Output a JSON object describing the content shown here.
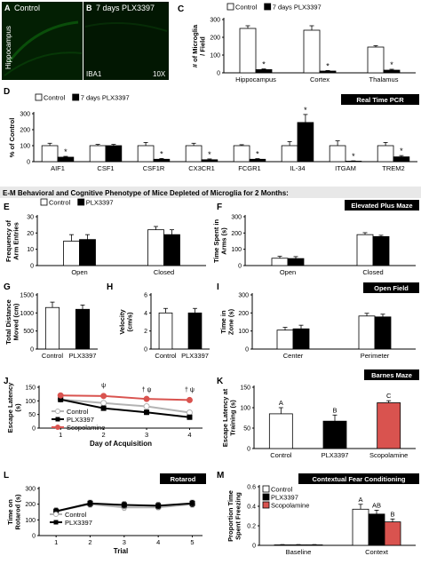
{
  "micrographs": {
    "a": {
      "panel": "A",
      "label": "Control",
      "side": "Hippocampus"
    },
    "b": {
      "panel": "B",
      "label": "7 days PLX3397",
      "stain": "IBA1",
      "mag": "10X"
    }
  },
  "section_header": "E-M Behavioral and Cognitive Phenotype of Mice Depleted of Microglia for 2 Months:",
  "chart_data": [
    {
      "id": "C",
      "type": "bar",
      "panel": "C",
      "title": "",
      "ylabel": "# of Microglia / Field",
      "ylim": [
        0,
        300
      ],
      "yticks": [
        0,
        100,
        200,
        300
      ],
      "categories": [
        "Hippocampus",
        "Cortex",
        "Thalamus"
      ],
      "series": [
        {
          "name": "Control",
          "values": [
            250,
            240,
            145
          ],
          "err": [
            15,
            25,
            8
          ],
          "color": "#ffffff"
        },
        {
          "name": "7 days PLX3397",
          "values": [
            18,
            10,
            15
          ],
          "err": [
            4,
            3,
            5
          ],
          "color": "#000000"
        }
      ],
      "sig_marks": [
        {
          "series": 1,
          "index": 0,
          "text": "*"
        },
        {
          "series": 1,
          "index": 1,
          "text": "*"
        },
        {
          "series": 1,
          "index": 2,
          "text": "*"
        }
      ]
    },
    {
      "id": "D",
      "type": "bar",
      "panel": "D",
      "title": "Real Time PCR",
      "ylabel": "% of Control",
      "ylim": [
        0,
        300
      ],
      "yticks": [
        0,
        100,
        200,
        300
      ],
      "categories": [
        "AIF1",
        "CSF1",
        "CSF1R",
        "CX3CR1",
        "FCGR1",
        "IL-34",
        "ITGAM",
        "TREM2"
      ],
      "series": [
        {
          "name": "Control",
          "values": [
            100,
            100,
            100,
            100,
            100,
            100,
            100,
            100
          ],
          "err": [
            15,
            8,
            20,
            15,
            6,
            25,
            30,
            20
          ],
          "color": "#ffffff"
        },
        {
          "name": "7 days PLX3397",
          "values": [
            28,
            100,
            15,
            12,
            15,
            245,
            3,
            30
          ],
          "err": [
            5,
            8,
            5,
            5,
            4,
            50,
            2,
            8
          ],
          "color": "#000000"
        }
      ],
      "sig_marks": [
        {
          "series": 1,
          "index": 0,
          "text": "*"
        },
        {
          "series": 1,
          "index": 2,
          "text": "*"
        },
        {
          "series": 1,
          "index": 3,
          "text": "*"
        },
        {
          "series": 1,
          "index": 4,
          "text": "*"
        },
        {
          "series": 1,
          "index": 5,
          "text": "*"
        },
        {
          "series": 1,
          "index": 6,
          "text": "*"
        },
        {
          "series": 1,
          "index": 7,
          "text": "*"
        }
      ]
    },
    {
      "id": "E",
      "type": "bar",
      "panel": "E",
      "title": "",
      "ylabel": "Frequency of Arm Entries",
      "ylim": [
        0,
        30
      ],
      "yticks": [
        0,
        10,
        20,
        30
      ],
      "categories": [
        "Open",
        "Closed"
      ],
      "series": [
        {
          "name": "Control",
          "values": [
            15,
            22
          ],
          "err": [
            4,
            2
          ],
          "color": "#ffffff"
        },
        {
          "name": "PLX3397",
          "values": [
            16,
            19
          ],
          "err": [
            3,
            3
          ],
          "color": "#000000"
        }
      ],
      "sig_marks": []
    },
    {
      "id": "F",
      "type": "bar",
      "panel": "F",
      "title": "Elevated Plus Maze",
      "ylabel": "Time Spent in Arms (s)",
      "ylim": [
        0,
        300
      ],
      "yticks": [
        0,
        100,
        200,
        300
      ],
      "categories": [
        "Open",
        "Closed"
      ],
      "series": [
        {
          "name": "Control",
          "values": [
            45,
            190
          ],
          "err": [
            12,
            12
          ],
          "color": "#ffffff"
        },
        {
          "name": "PLX3397",
          "values": [
            43,
            178
          ],
          "err": [
            12,
            8
          ],
          "color": "#000000"
        }
      ],
      "sig_marks": []
    },
    {
      "id": "G",
      "type": "bar",
      "panel": "G",
      "title": "",
      "ylabel": "Total Distance Moved (cm)",
      "ylim": [
        0,
        1500
      ],
      "yticks": [
        0,
        500,
        1000,
        1500
      ],
      "categories": [
        "Control",
        "PLX3397"
      ],
      "series": [
        {
          "name": "",
          "values": [
            1150,
            1100
          ],
          "err": [
            150,
            120
          ],
          "color": "#ffffff",
          "colors": [
            "#ffffff",
            "#000000"
          ]
        }
      ],
      "sig_marks": []
    },
    {
      "id": "H",
      "type": "bar",
      "panel": "H",
      "title": "",
      "ylabel": "Velocity (cm/s)",
      "ylim": [
        0,
        6
      ],
      "yticks": [
        0,
        2,
        4,
        6
      ],
      "categories": [
        "Control",
        "PLX3397"
      ],
      "series": [
        {
          "name": "",
          "values": [
            4.0,
            4.0
          ],
          "err": [
            0.5,
            0.5
          ],
          "color": "#ffffff",
          "colors": [
            "#ffffff",
            "#000000"
          ]
        }
      ],
      "sig_marks": []
    },
    {
      "id": "I",
      "type": "bar",
      "panel": "I",
      "title": "Open Field",
      "ylabel": "Time in Zone (s)",
      "ylim": [
        0,
        300
      ],
      "yticks": [
        0,
        100,
        200,
        300
      ],
      "categories": [
        "Center",
        "Perimeter"
      ],
      "series": [
        {
          "name": "Control",
          "values": [
            105,
            183
          ],
          "err": [
            15,
            15
          ],
          "color": "#ffffff"
        },
        {
          "name": "PLX3397",
          "values": [
            112,
            178
          ],
          "err": [
            20,
            15
          ],
          "color": "#000000"
        }
      ],
      "sig_marks": []
    },
    {
      "id": "J",
      "type": "line",
      "panel": "J",
      "title": "",
      "ylabel": "Escape Latency (s)",
      "xlabel": "Day of Acquisition",
      "ylim": [
        0,
        150
      ],
      "yticks": [
        0,
        50,
        100,
        150
      ],
      "x": [
        1,
        2,
        3,
        4
      ],
      "series": [
        {
          "name": "Control",
          "values": [
            105,
            92,
            80,
            57
          ],
          "err": [
            5,
            8,
            8,
            6
          ],
          "color": "#b3b3b3",
          "marker": "circle"
        },
        {
          "name": "PLX3397",
          "values": [
            105,
            73,
            58,
            40
          ],
          "err": [
            5,
            8,
            8,
            5
          ],
          "color": "#000000",
          "marker": "square"
        },
        {
          "name": "Scopolamine",
          "values": [
            120,
            118,
            107,
            103
          ],
          "err": [
            3,
            4,
            4,
            4
          ],
          "color": "#d9534f",
          "marker": "circle"
        }
      ],
      "annotations": [
        {
          "x": 2,
          "y": 150,
          "text": "ψ"
        },
        {
          "x": 3,
          "y": 133,
          "text": "† ψ"
        },
        {
          "x": 4,
          "y": 133,
          "text": "† ψ"
        },
        {
          "x": 2,
          "y": 55,
          "text": "*"
        },
        {
          "x": 3,
          "y": 40,
          "text": "*"
        }
      ]
    },
    {
      "id": "K",
      "type": "bar",
      "panel": "K",
      "title": "Barnes Maze",
      "ylabel": "Escape Latency at Training (s)",
      "ylim": [
        0,
        150
      ],
      "yticks": [
        0,
        50,
        100,
        150
      ],
      "categories": [
        "Control",
        "PLX3397",
        "Scopolamine"
      ],
      "series": [
        {
          "name": "",
          "values": [
            85,
            67,
            112
          ],
          "err": [
            15,
            15,
            5
          ],
          "color": "#ffffff",
          "colors": [
            "#ffffff",
            "#000000",
            "#d9534f"
          ]
        }
      ],
      "bar_letters": [
        "A",
        "B",
        "C"
      ],
      "sig_marks": []
    },
    {
      "id": "L",
      "type": "line",
      "panel": "L",
      "title": "Rotarod",
      "ylabel": "Time on Rotarod (s)",
      "xlabel": "Trial",
      "ylim": [
        0,
        300
      ],
      "yticks": [
        0,
        100,
        200,
        300
      ],
      "x": [
        1,
        2,
        3,
        4,
        5
      ],
      "series": [
        {
          "name": "Control",
          "values": [
            155,
            200,
            180,
            180,
            200
          ],
          "err": [
            20,
            20,
            20,
            15,
            20
          ],
          "color": "#b3b3b3",
          "marker": "circle"
        },
        {
          "name": "PLX3397",
          "values": [
            155,
            205,
            195,
            190,
            205
          ],
          "err": [
            20,
            20,
            20,
            20,
            20
          ],
          "color": "#000000",
          "marker": "square"
        }
      ]
    },
    {
      "id": "M",
      "type": "bar",
      "panel": "M",
      "title": "Contextual Fear Conditioning",
      "ylabel": "Proportion Time Spent Freezing",
      "ylim": [
        0,
        0.6
      ],
      "yticks": [
        0,
        0.2,
        0.4,
        0.6
      ],
      "categories": [
        "Baseline",
        "Context"
      ],
      "series": [
        {
          "name": "Control",
          "values": [
            0.005,
            0.37
          ],
          "err": [
            0.003,
            0.05
          ],
          "color": "#ffffff"
        },
        {
          "name": "PLX3397",
          "values": [
            0.005,
            0.32
          ],
          "err": [
            0.003,
            0.04
          ],
          "color": "#000000"
        },
        {
          "name": "Scopolamine",
          "values": [
            0.005,
            0.24
          ],
          "err": [
            0.003,
            0.03
          ],
          "color": "#d9534f"
        }
      ],
      "group_letters": [
        {
          "index": 1,
          "series": 0,
          "text": "A"
        },
        {
          "index": 1,
          "series": 1,
          "text": "AB"
        },
        {
          "index": 1,
          "series": 2,
          "text": "B"
        }
      ],
      "sig_marks": []
    }
  ]
}
